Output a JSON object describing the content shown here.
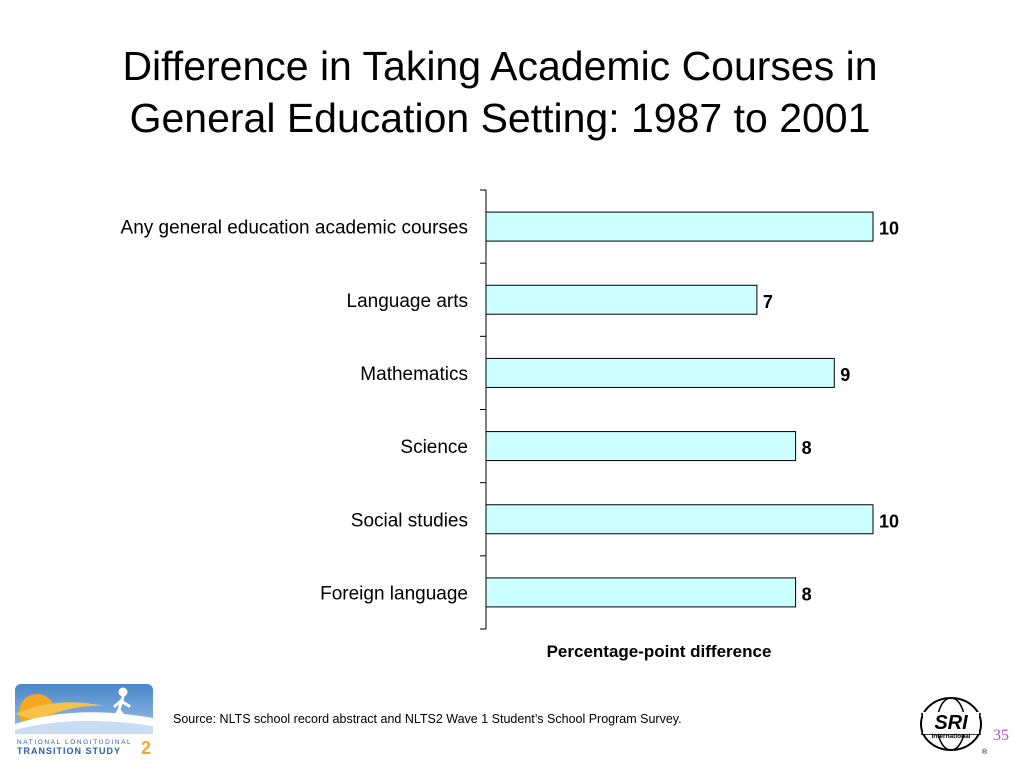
{
  "slide": {
    "title_line1": "Difference in Taking Academic Courses in",
    "title_line2": "General Education Setting: 1987 to 2001",
    "source": "Source: NLTS school record abstract and NLTS2 Wave 1 Student’s School Program Survey.",
    "page_number": "35"
  },
  "logos": {
    "nlts_line1": "NATIONAL LONGITUDINAL",
    "nlts_line2": "TRANSITION STUDY",
    "nlts_number": "2",
    "sri_line1": "SRI",
    "sri_line2": "International",
    "sri_mark": "®"
  },
  "colors": {
    "bar_fill": "#ccffff",
    "bar_stroke": "#000000",
    "page_number": "#b04fd0"
  },
  "chart_data": {
    "type": "bar",
    "orientation": "horizontal",
    "categories": [
      "Any general education academic courses",
      "Language arts",
      "Mathematics",
      "Science",
      "Social studies",
      "Foreign language"
    ],
    "values": [
      10,
      7,
      9,
      8,
      10,
      8
    ],
    "data_labels": [
      "10",
      "7",
      "9",
      "8",
      "10",
      "8"
    ],
    "xlabel": "Percentage-point difference",
    "xlim": [
      0,
      10
    ],
    "grid": false,
    "legend": "none"
  }
}
